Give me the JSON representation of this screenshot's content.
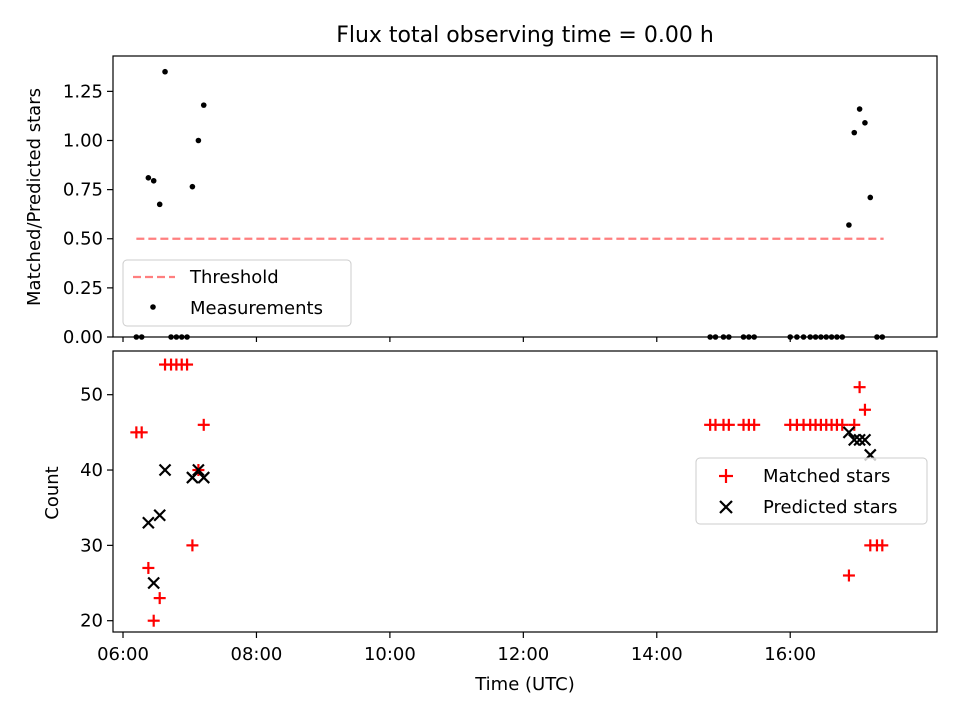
{
  "chart_data": [
    {
      "type": "scatter",
      "title": "Flux total observing time = 0.00 h",
      "xlabel": "",
      "ylabel": "Matched/Predicted stars",
      "xlim": [
        5.85,
        18.2
      ],
      "ylim": [
        0,
        1.43
      ],
      "y_ticks": [
        0.0,
        0.25,
        0.5,
        0.75,
        1.0,
        1.25
      ],
      "y_tick_labels": [
        "0.00",
        "0.25",
        "0.50",
        "0.75",
        "1.00",
        "1.25"
      ],
      "legend": {
        "position": "lower-left",
        "entries": [
          "Threshold",
          "Measurements"
        ]
      },
      "threshold": {
        "name": "Threshold",
        "y": 0.5,
        "x": [
          6.2,
          17.4
        ],
        "color": "#ff7f7f"
      },
      "series": [
        {
          "name": "Measurements",
          "color": "#000000",
          "points": [
            [
              6.2,
              0
            ],
            [
              6.28,
              0
            ],
            [
              6.38,
              0.81
            ],
            [
              6.46,
              0.795
            ],
            [
              6.55,
              0.675
            ],
            [
              6.63,
              1.35
            ],
            [
              6.72,
              0
            ],
            [
              6.8,
              0
            ],
            [
              6.88,
              0
            ],
            [
              6.96,
              0
            ],
            [
              7.04,
              0.765
            ],
            [
              7.13,
              1.0
            ],
            [
              7.21,
              1.18
            ],
            [
              14.8,
              0
            ],
            [
              14.88,
              0
            ],
            [
              15.0,
              0
            ],
            [
              15.08,
              0
            ],
            [
              15.3,
              0
            ],
            [
              15.38,
              0
            ],
            [
              15.46,
              0
            ],
            [
              16.0,
              0
            ],
            [
              16.1,
              0
            ],
            [
              16.2,
              0
            ],
            [
              16.3,
              0
            ],
            [
              16.38,
              0
            ],
            [
              16.46,
              0
            ],
            [
              16.54,
              0
            ],
            [
              16.62,
              0
            ],
            [
              16.7,
              0
            ],
            [
              16.78,
              0
            ],
            [
              16.88,
              0.57
            ],
            [
              16.96,
              1.04
            ],
            [
              17.04,
              1.16
            ],
            [
              17.12,
              1.09
            ],
            [
              17.2,
              0.71
            ],
            [
              17.3,
              0
            ],
            [
              17.38,
              0
            ]
          ]
        }
      ]
    },
    {
      "type": "scatter",
      "title": "",
      "xlabel": "Time (UTC)",
      "ylabel": "Count",
      "xlim": [
        5.85,
        18.2
      ],
      "ylim": [
        18.5,
        55.8
      ],
      "x_ticks": [
        6,
        8,
        10,
        12,
        14,
        16
      ],
      "x_tick_labels": [
        "06:00",
        "08:00",
        "10:00",
        "12:00",
        "14:00",
        "16:00"
      ],
      "y_ticks": [
        20,
        30,
        40,
        50
      ],
      "y_tick_labels": [
        "20",
        "30",
        "40",
        "50"
      ],
      "legend": {
        "position": "right",
        "entries": [
          "Matched stars",
          "Predicted stars"
        ]
      },
      "series": [
        {
          "name": "Matched stars",
          "marker": "plus",
          "color": "#ff0000",
          "points": [
            [
              6.2,
              45
            ],
            [
              6.28,
              45
            ],
            [
              6.38,
              27
            ],
            [
              6.46,
              20
            ],
            [
              6.55,
              23
            ],
            [
              6.63,
              54
            ],
            [
              6.72,
              54
            ],
            [
              6.8,
              54
            ],
            [
              6.88,
              54
            ],
            [
              6.96,
              54
            ],
            [
              7.04,
              30
            ],
            [
              7.13,
              40
            ],
            [
              7.21,
              46
            ],
            [
              14.8,
              46
            ],
            [
              14.88,
              46
            ],
            [
              15.0,
              46
            ],
            [
              15.08,
              46
            ],
            [
              15.3,
              46
            ],
            [
              15.38,
              46
            ],
            [
              15.46,
              46
            ],
            [
              16.0,
              46
            ],
            [
              16.1,
              46
            ],
            [
              16.2,
              46
            ],
            [
              16.3,
              46
            ],
            [
              16.38,
              46
            ],
            [
              16.46,
              46
            ],
            [
              16.54,
              46
            ],
            [
              16.62,
              46
            ],
            [
              16.7,
              46
            ],
            [
              16.78,
              46
            ],
            [
              16.88,
              26
            ],
            [
              16.96,
              46
            ],
            [
              17.04,
              51
            ],
            [
              17.12,
              48
            ],
            [
              17.2,
              30
            ],
            [
              17.3,
              30
            ],
            [
              17.38,
              30
            ]
          ]
        },
        {
          "name": "Predicted stars",
          "marker": "x",
          "color": "#000000",
          "points": [
            [
              6.38,
              33
            ],
            [
              6.46,
              25
            ],
            [
              6.55,
              34
            ],
            [
              6.63,
              40
            ],
            [
              7.04,
              39
            ],
            [
              7.13,
              40
            ],
            [
              7.21,
              39
            ],
            [
              16.88,
              45
            ],
            [
              16.96,
              44
            ],
            [
              17.04,
              44
            ],
            [
              17.12,
              44
            ],
            [
              17.2,
              42
            ]
          ]
        }
      ]
    }
  ]
}
